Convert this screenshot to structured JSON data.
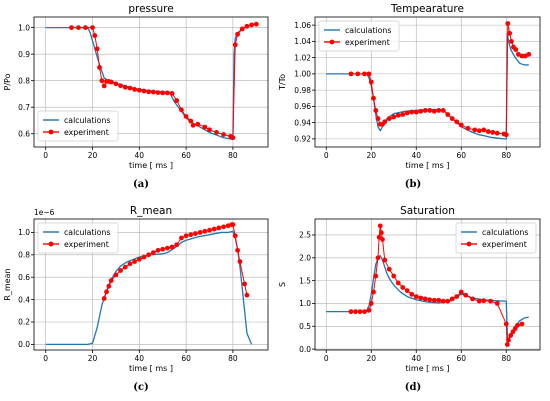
{
  "chart_data": [
    {
      "type": "line",
      "title": "pressure",
      "xlabel": "time [ ms ]",
      "ylabel": "P/Po",
      "caption": "(a)",
      "xlim": [
        -5,
        95
      ],
      "ylim": [
        0.55,
        1.04
      ],
      "xticks": [
        0,
        20,
        40,
        60,
        80
      ],
      "yticks": [
        0.6,
        0.7,
        0.8,
        0.9,
        1.0
      ],
      "ytick_labels": [
        "0.6",
        "0.7",
        "0.8",
        "0.9",
        "1.0"
      ],
      "legend_position": "bottom-left",
      "colors": {
        "calculations": "#1f77b4",
        "experiment": "#ff0000"
      },
      "series": [
        {
          "name": "calculations",
          "x": [
            0,
            10,
            18,
            19,
            21,
            23,
            25,
            27,
            30,
            35,
            40,
            45,
            50,
            53,
            55,
            58,
            60,
            62,
            65,
            68,
            70,
            73,
            76,
            79,
            80,
            80.5,
            81,
            82,
            84,
            86,
            88,
            90
          ],
          "y": [
            1.0,
            1.0,
            1.0,
            0.98,
            0.92,
            0.86,
            0.81,
            0.8,
            0.79,
            0.777,
            0.767,
            0.762,
            0.757,
            0.755,
            0.72,
            0.685,
            0.66,
            0.645,
            0.63,
            0.615,
            0.605,
            0.595,
            0.585,
            0.58,
            0.58,
            0.9,
            0.96,
            0.98,
            0.995,
            1.005,
            1.01,
            1.015
          ]
        },
        {
          "name": "experiment",
          "x": [
            11,
            14,
            17,
            20,
            21,
            22,
            23,
            24,
            25,
            26,
            27,
            28,
            30,
            32,
            34,
            36,
            38,
            40,
            42,
            44,
            46,
            48,
            50,
            52,
            54,
            56,
            58,
            60,
            62,
            63,
            65,
            68,
            70,
            73,
            76,
            79,
            80,
            81,
            82,
            84,
            86,
            88,
            90
          ],
          "y": [
            1.0,
            1.0,
            1.0,
            1.0,
            0.97,
            0.92,
            0.85,
            0.8,
            0.78,
            0.797,
            0.797,
            0.795,
            0.788,
            0.781,
            0.775,
            0.772,
            0.767,
            0.764,
            0.761,
            0.758,
            0.757,
            0.755,
            0.754,
            0.754,
            0.752,
            0.725,
            0.69,
            0.665,
            0.648,
            0.632,
            0.636,
            0.625,
            0.615,
            0.605,
            0.597,
            0.59,
            0.585,
            0.935,
            0.975,
            0.995,
            1.005,
            1.01,
            1.013
          ]
        }
      ]
    },
    {
      "type": "line",
      "title": "Tempearature",
      "xlabel": "time [ ms ]",
      "ylabel": "T/To",
      "caption": "(b)",
      "xlim": [
        -5,
        95
      ],
      "ylim": [
        0.91,
        1.07
      ],
      "xticks": [
        0,
        20,
        40,
        60,
        80
      ],
      "yticks": [
        0.92,
        0.94,
        0.96,
        0.98,
        1.0,
        1.02,
        1.04,
        1.06
      ],
      "ytick_labels": [
        "0.92",
        "0.94",
        "0.96",
        "0.98",
        "1.00",
        "1.02",
        "1.04",
        "1.06"
      ],
      "legend_position": "top-left",
      "colors": {
        "calculations": "#1f77b4",
        "experiment": "#ff0000"
      },
      "series": [
        {
          "name": "calculations",
          "x": [
            0,
            10,
            18,
            19,
            20,
            21,
            22,
            23,
            24,
            25,
            27,
            30,
            35,
            40,
            45,
            50,
            52,
            54,
            56,
            58,
            60,
            62,
            65,
            68,
            70,
            73,
            76,
            79,
            80,
            80.5,
            81,
            82,
            84,
            86,
            88,
            90
          ],
          "y": [
            1.0,
            1.0,
            1.0,
            0.995,
            0.985,
            0.97,
            0.95,
            0.935,
            0.93,
            0.935,
            0.945,
            0.951,
            0.954,
            0.955,
            0.956,
            0.956,
            0.956,
            0.95,
            0.945,
            0.94,
            0.935,
            0.932,
            0.928,
            0.925,
            0.924,
            0.922,
            0.921,
            0.92,
            0.92,
            1.05,
            1.04,
            1.03,
            1.02,
            1.013,
            1.011,
            1.011
          ]
        },
        {
          "name": "experiment",
          "x": [
            11,
            14,
            17,
            19,
            20,
            21,
            22,
            23,
            24,
            25,
            26,
            28,
            30,
            32,
            34,
            36,
            38,
            40,
            42,
            44,
            46,
            48,
            50,
            52,
            54,
            56,
            58,
            60,
            63,
            66,
            68,
            70,
            72,
            74,
            76,
            79,
            80,
            80.7,
            81.5,
            82.3,
            83.2,
            84.2,
            85.4,
            87,
            88.5,
            90
          ],
          "y": [
            1.0,
            1.0,
            1.0,
            1.0,
            0.99,
            0.97,
            0.955,
            0.945,
            0.938,
            0.938,
            0.941,
            0.945,
            0.947,
            0.949,
            0.95,
            0.952,
            0.953,
            0.953,
            0.954,
            0.955,
            0.955,
            0.954,
            0.955,
            0.955,
            0.95,
            0.945,
            0.941,
            0.937,
            0.933,
            0.931,
            0.93,
            0.931,
            0.929,
            0.928,
            0.927,
            0.926,
            0.925,
            1.062,
            1.05,
            1.04,
            1.033,
            1.03,
            1.024,
            1.022,
            1.022,
            1.024
          ]
        }
      ]
    },
    {
      "type": "line",
      "title": "R_mean",
      "xlabel": "time [ ms ]",
      "ylabel": "R_mean",
      "offset_text": "1e−6",
      "caption": "(c)",
      "xlim": [
        -5,
        95
      ],
      "ylim": [
        -0.05,
        1.12
      ],
      "xticks": [
        0,
        20,
        40,
        60,
        80
      ],
      "yticks": [
        0.0,
        0.2,
        0.4,
        0.6,
        0.8,
        1.0
      ],
      "ytick_labels": [
        "0.0",
        "0.2",
        "0.4",
        "0.6",
        "0.8",
        "1.0"
      ],
      "legend_position": "top-left",
      "colors": {
        "calculations": "#1f77b4",
        "experiment": "#ff0000"
      },
      "series": [
        {
          "name": "calculations",
          "x": [
            0,
            10,
            18,
            20,
            22,
            24,
            26,
            28,
            30,
            32,
            35,
            40,
            45,
            50,
            52,
            55,
            58,
            60,
            65,
            70,
            75,
            78,
            80,
            81,
            82,
            83,
            84,
            85,
            86,
            88
          ],
          "y": [
            0.0,
            0.0,
            0.0,
            0.01,
            0.15,
            0.35,
            0.48,
            0.58,
            0.65,
            0.7,
            0.74,
            0.78,
            0.8,
            0.81,
            0.82,
            0.86,
            0.91,
            0.93,
            0.96,
            0.98,
            1.0,
            1.0,
            1.01,
            0.95,
            0.85,
            0.7,
            0.5,
            0.3,
            0.1,
            0.0
          ]
        },
        {
          "name": "experiment",
          "x": [
            25,
            26,
            27,
            28,
            30,
            32,
            34,
            36,
            38,
            40,
            42,
            44,
            46,
            48,
            50,
            52,
            54,
            56,
            58,
            60,
            62,
            64,
            66,
            68,
            70,
            72,
            74,
            76,
            78,
            79.5,
            80,
            81,
            82,
            83,
            85,
            86
          ],
          "y": [
            0.41,
            0.47,
            0.52,
            0.57,
            0.62,
            0.66,
            0.69,
            0.72,
            0.74,
            0.76,
            0.78,
            0.8,
            0.82,
            0.84,
            0.85,
            0.86,
            0.87,
            0.89,
            0.95,
            0.97,
            0.98,
            0.99,
            1.0,
            1.01,
            1.02,
            1.03,
            1.04,
            1.05,
            1.06,
            1.07,
            1.07,
            0.97,
            0.84,
            0.74,
            0.54,
            0.44
          ]
        }
      ]
    },
    {
      "type": "line",
      "title": "Saturation",
      "xlabel": "time [ ms ]",
      "ylabel": "S",
      "caption": "(d)",
      "xlim": [
        -5,
        95
      ],
      "ylim": [
        -0.02,
        2.85
      ],
      "xticks": [
        0,
        20,
        40,
        60,
        80
      ],
      "yticks": [
        0.0,
        0.5,
        1.0,
        1.5,
        2.0,
        2.5
      ],
      "ytick_labels": [
        "0.0",
        "0.5",
        "1.0",
        "1.5",
        "2.0",
        "2.5"
      ],
      "legend_position": "top-right",
      "colors": {
        "calculations": "#1f77b4",
        "experiment": "#ff0000"
      },
      "series": [
        {
          "name": "calculations",
          "x": [
            0,
            10,
            16,
            18,
            19,
            20,
            21,
            22,
            23,
            24,
            25,
            26,
            27,
            28,
            30,
            33,
            36,
            40,
            45,
            50,
            55,
            58,
            60,
            62,
            65,
            70,
            75,
            79,
            80,
            80.5,
            81,
            82,
            84,
            86,
            88,
            90
          ],
          "y": [
            0.82,
            0.82,
            0.82,
            0.85,
            0.95,
            1.2,
            1.55,
            1.85,
            2.0,
            2.05,
            1.95,
            1.8,
            1.65,
            1.55,
            1.4,
            1.25,
            1.15,
            1.08,
            1.03,
            1.01,
            1.05,
            1.15,
            1.2,
            1.18,
            1.12,
            1.08,
            1.06,
            1.05,
            1.05,
            0.3,
            0.2,
            0.3,
            0.5,
            0.62,
            0.68,
            0.7
          ]
        },
        {
          "name": "experiment",
          "x": [
            11,
            13,
            15,
            17,
            19,
            20,
            21,
            22,
            23,
            23.5,
            24,
            24.5,
            25,
            26,
            28,
            30,
            32,
            34,
            36,
            38,
            40,
            42,
            44,
            46,
            48,
            50,
            52,
            54,
            56,
            58,
            60,
            62,
            65,
            68,
            70,
            73,
            76,
            80,
            80.5,
            81,
            82,
            83,
            84,
            85,
            87
          ],
          "y": [
            0.82,
            0.82,
            0.82,
            0.82,
            0.85,
            1.0,
            1.25,
            1.6,
            2.0,
            2.45,
            2.7,
            2.55,
            2.4,
            1.95,
            1.75,
            1.6,
            1.45,
            1.35,
            1.28,
            1.2,
            1.15,
            1.12,
            1.1,
            1.08,
            1.07,
            1.07,
            1.05,
            1.05,
            1.1,
            1.15,
            1.25,
            1.18,
            1.1,
            1.05,
            1.06,
            1.05,
            1.0,
            0.55,
            0.1,
            0.2,
            0.3,
            0.38,
            0.45,
            0.52,
            0.55
          ]
        }
      ]
    }
  ]
}
